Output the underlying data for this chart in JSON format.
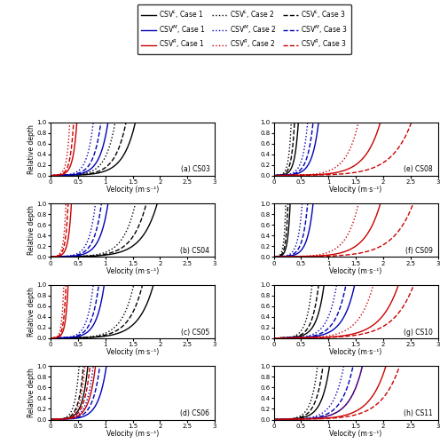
{
  "colors": {
    "L": "#000000",
    "M": "#0000b8",
    "R": "#cc0000"
  },
  "xlim": [
    0.0,
    3.0
  ],
  "ylim": [
    0.0,
    1.0
  ],
  "xticks": [
    0.0,
    0.5,
    1.0,
    1.5,
    2.0,
    2.5,
    3.0
  ],
  "yticks": [
    0.0,
    0.2,
    0.4,
    0.6,
    0.8,
    1.0
  ],
  "xlabel": "Velocity (m·s⁻¹)",
  "ylabel": "Relative depth",
  "legend_labels": [
    [
      "CSV$^L$, Case 1",
      "#000000",
      "solid"
    ],
    [
      "CSV$^M$, Case 1",
      "#0000b8",
      "solid"
    ],
    [
      "CSV$^R$, Case 1",
      "#cc0000",
      "solid"
    ],
    [
      "CSV$^L$, Case 2",
      "#000000",
      "dotted"
    ],
    [
      "CSV$^M$, Case 2",
      "#0000b8",
      "dotted"
    ],
    [
      "CSV$^R$, Case 2",
      "#cc0000",
      "dotted"
    ],
    [
      "CSV$^L$, Case 3",
      "#000000",
      "dashed"
    ],
    [
      "CSV$^M$, Case 3",
      "#0000b8",
      "dashed"
    ],
    [
      "CSV$^R$, Case 3",
      "#cc0000",
      "dashed"
    ]
  ],
  "panels": {
    "CS03": {
      "label": "(a) CS03",
      "col": 0,
      "row": 0,
      "L": {
        "c1": 1.55,
        "c2": 1.18,
        "c3": 1.38
      },
      "M": {
        "c1": 1.05,
        "c2": 0.78,
        "c3": 0.92
      },
      "R": {
        "c1": 0.48,
        "c2": 0.35,
        "c3": 0.42
      }
    },
    "CS04": {
      "label": "(b) CS04",
      "col": 0,
      "row": 1,
      "L": {
        "c1": 1.95,
        "c2": 1.55,
        "c3": 1.75
      },
      "M": {
        "c1": 1.05,
        "c2": 0.82,
        "c3": 0.93
      },
      "R": {
        "c1": 0.38,
        "c2": 0.28,
        "c3": 0.32
      }
    },
    "CS05": {
      "label": "(c) CS05",
      "col": 0,
      "row": 2,
      "L": {
        "c1": 1.88,
        "c2": 1.52,
        "c3": 1.68
      },
      "M": {
        "c1": 0.98,
        "c2": 0.78,
        "c3": 0.88
      },
      "R": {
        "c1": 0.32,
        "c2": 0.24,
        "c3": 0.28
      }
    },
    "CS06": {
      "label": "(d) CS06",
      "col": 0,
      "row": 3,
      "L": {
        "c1": 0.68,
        "c2": 0.52,
        "c3": 0.6
      },
      "M": {
        "c1": 1.02,
        "c2": 0.78,
        "c3": 0.9
      },
      "R": {
        "c1": 0.82,
        "c2": 0.63,
        "c3": 0.72
      }
    },
    "CS08": {
      "label": "(e) CS08",
      "col": 1,
      "row": 0,
      "L": {
        "c1": 0.45,
        "c2": 0.32,
        "c3": 0.38
      },
      "M": {
        "c1": 0.82,
        "c2": 0.62,
        "c3": 0.72
      },
      "R": {
        "c1": 1.95,
        "c2": 1.55,
        "c3": 2.52
      }
    },
    "CS09": {
      "label": "(f) CS09",
      "col": 1,
      "row": 1,
      "L": {
        "c1": 0.3,
        "c2": 0.22,
        "c3": 0.26
      },
      "M": {
        "c1": 0.72,
        "c2": 0.52,
        "c3": 0.62
      },
      "R": {
        "c1": 1.95,
        "c2": 1.55,
        "c3": 2.55
      }
    },
    "CS10": {
      "label": "(g) CS10",
      "col": 1,
      "row": 2,
      "L": {
        "c1": 0.92,
        "c2": 0.7,
        "c3": 0.82
      },
      "M": {
        "c1": 1.48,
        "c2": 1.15,
        "c3": 1.32
      },
      "R": {
        "c1": 2.28,
        "c2": 1.82,
        "c3": 2.56
      }
    },
    "CS11": {
      "label": "(h) CS11",
      "col": 1,
      "row": 3,
      "L": {
        "c1": 1.02,
        "c2": 0.8,
        "c3": 0.9
      },
      "M": {
        "c1": 1.62,
        "c2": 1.28,
        "c3": 1.45
      },
      "R": {
        "c1": 2.05,
        "c2": 1.62,
        "c3": 2.3
      }
    }
  },
  "display_order": [
    "CS03",
    "CS08",
    "CS04",
    "CS09",
    "CS05",
    "CS10",
    "CS06",
    "CS11"
  ]
}
